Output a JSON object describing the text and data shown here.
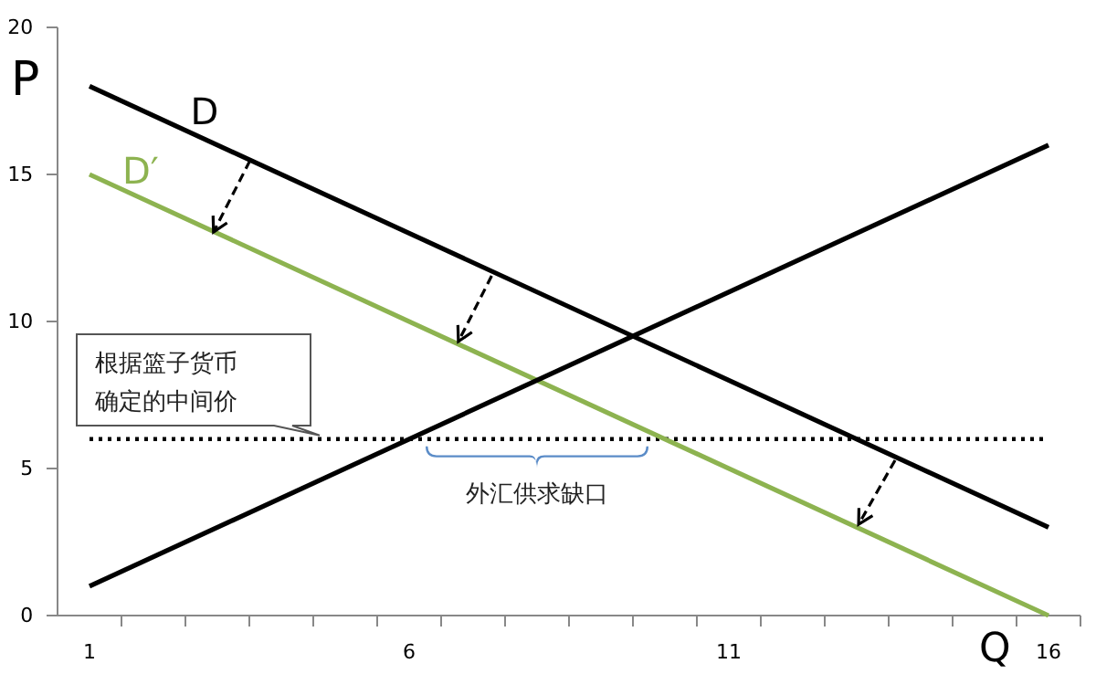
{
  "chart_data": {
    "type": "line",
    "xlabel": "Q",
    "ylabel": "P",
    "xlim": [
      0.5,
      16.5
    ],
    "ylim": [
      0,
      20
    ],
    "xticks": [
      1,
      {
        "value": 1.5,
        "label": null
      },
      {
        "value": 2.5,
        "label": null
      },
      {
        "value": 3.5,
        "label": null
      },
      {
        "value": 4.5,
        "label": null
      },
      {
        "value": 5.5,
        "label": null
      },
      6,
      {
        "value": 6.5,
        "label": null
      },
      {
        "value": 7.5,
        "label": null
      },
      {
        "value": 8.5,
        "label": null
      },
      {
        "value": 9.5,
        "label": null
      },
      {
        "value": 10.5,
        "label": null
      },
      11,
      {
        "value": 11.5,
        "label": null
      },
      {
        "value": 12.5,
        "label": null
      },
      {
        "value": 13.5,
        "label": null
      },
      {
        "value": 14.5,
        "label": null
      },
      {
        "value": 15.5,
        "label": null
      },
      16,
      {
        "value": 16.5,
        "label": null
      }
    ],
    "yticks": [
      0,
      5,
      10,
      15,
      20
    ],
    "grid": false,
    "legend": false,
    "marker": "none",
    "line_style": "solid",
    "x": [
      1,
      16
    ],
    "series": [
      {
        "name": "D",
        "color": "#000000",
        "values": [
          18,
          3
        ]
      },
      {
        "name": "D′",
        "color": "#8db350",
        "values": [
          15,
          0
        ]
      },
      {
        "color": "#000000",
        "values": [
          1,
          16
        ]
      }
    ],
    "ref_lines": [
      {
        "axis": "y",
        "value": 6,
        "color": "#000000",
        "line_style": "dotted",
        "label": "根据篮子货币确定的中间价"
      }
    ],
    "annotations": [
      {
        "text": "外汇供求缺口",
        "x": 8,
        "y": 6
      }
    ]
  }
}
